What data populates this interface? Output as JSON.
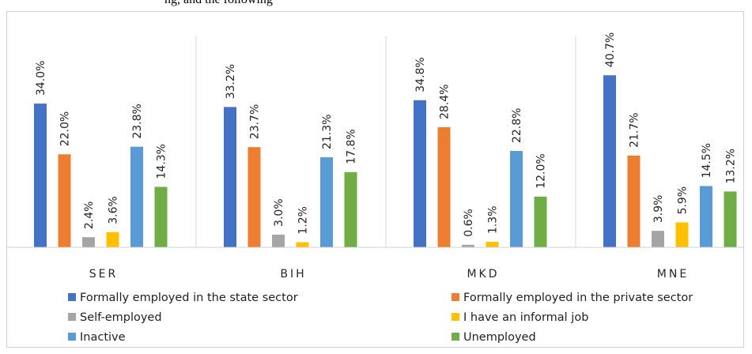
{
  "caption": "ng, and the following",
  "chart_data": {
    "type": "bar",
    "categories": [
      "SER",
      "BIH",
      "MKD",
      "MNE"
    ],
    "series": [
      {
        "name": "Formally employed in the state sector",
        "color": "#4472c4",
        "values": [
          34.0,
          33.2,
          34.8,
          40.7
        ],
        "labels": [
          "34.0%",
          "33.2%",
          "34.8%",
          "40.7%"
        ]
      },
      {
        "name": "Formally employed in the private sector",
        "color": "#ed7d31",
        "values": [
          22.0,
          23.7,
          28.4,
          21.7
        ],
        "labels": [
          "22.0%",
          "23.7%",
          "28.4%",
          "21.7%"
        ]
      },
      {
        "name": "Self-employed",
        "color": "#a5a5a5",
        "values": [
          2.4,
          3.0,
          0.6,
          3.9
        ],
        "labels": [
          "2.4%",
          "3.0%",
          "0.6%",
          "3.9%"
        ]
      },
      {
        "name": "I have an informal job",
        "color": "#ffc000",
        "values": [
          3.6,
          1.2,
          1.3,
          5.9
        ],
        "labels": [
          "3.6%",
          "1.2%",
          "1.3%",
          "5.9%"
        ]
      },
      {
        "name": "Inactive",
        "color": "#5b9bd5",
        "values": [
          23.8,
          21.3,
          22.8,
          14.5
        ],
        "labels": [
          "23.8%",
          "21.3%",
          "22.8%",
          "14.5%"
        ]
      },
      {
        "name": "Unemployed",
        "color": "#70ad47",
        "values": [
          14.3,
          17.8,
          12.0,
          13.2
        ],
        "labels": [
          "14.3%",
          "17.8%",
          "12.0%",
          "13.2%"
        ]
      }
    ],
    "legend_position": "bottom",
    "grid": false
  }
}
